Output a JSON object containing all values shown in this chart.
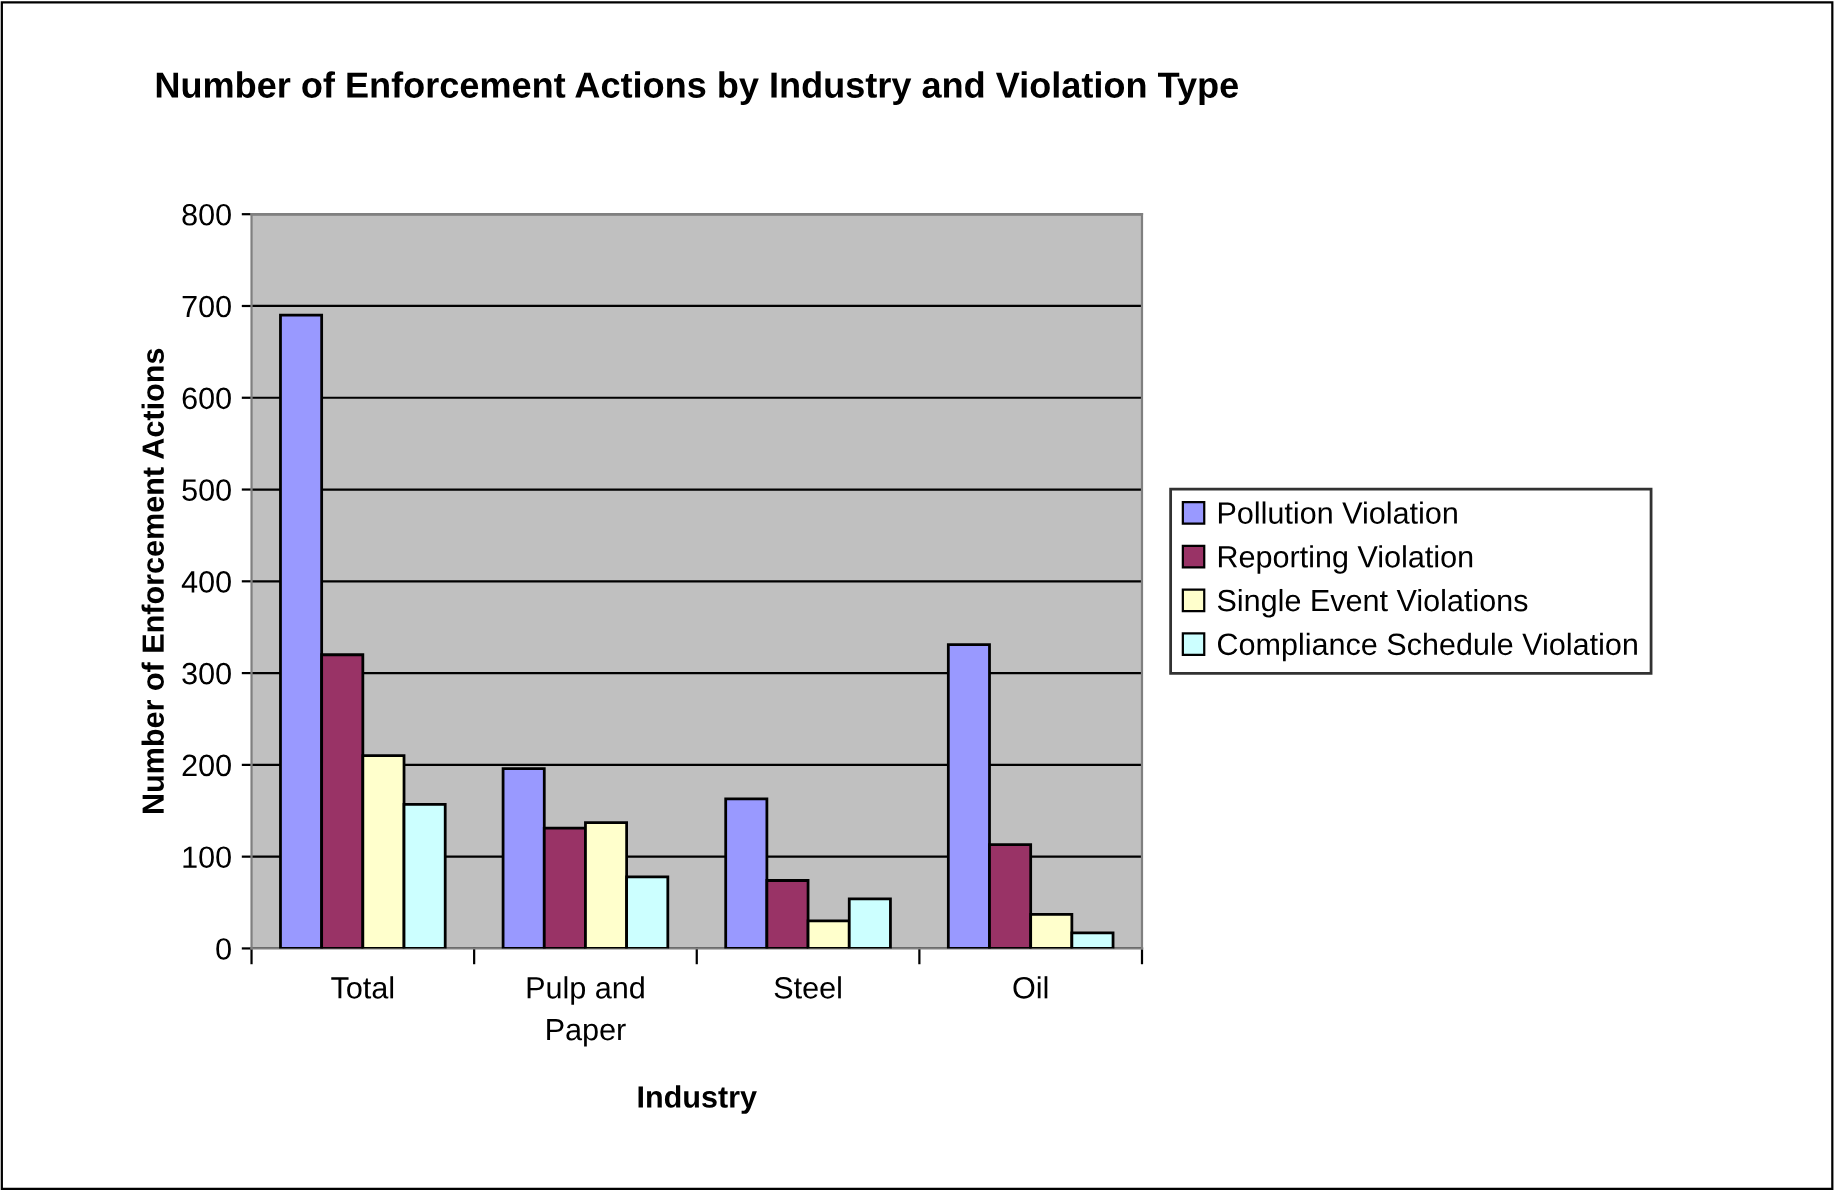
{
  "chart_data": {
    "type": "bar",
    "title": "Number of Enforcement Actions by Industry and Violation Type",
    "xlabel": "Industry",
    "ylabel": "Number of Enforcement Actions",
    "categories": [
      "Total",
      "Pulp and\nPaper",
      "Steel",
      "Oil"
    ],
    "series": [
      {
        "name": "Pollution Violation",
        "color": "#9999ff",
        "values": [
          690,
          196,
          163,
          331
        ]
      },
      {
        "name": "Reporting Violation",
        "color": "#993366",
        "values": [
          320,
          131,
          74,
          113
        ]
      },
      {
        "name": "Single Event Violations",
        "color": "#ffffcc",
        "values": [
          210,
          137,
          30,
          37
        ]
      },
      {
        "name": "Compliance Schedule Violation",
        "color": "#ccffff",
        "values": [
          157,
          78,
          54,
          17
        ]
      }
    ],
    "ylim": [
      0,
      800
    ],
    "yticks": [
      0,
      100,
      200,
      300,
      400,
      500,
      600,
      700,
      800
    ],
    "grid": "y",
    "legend": "right"
  }
}
